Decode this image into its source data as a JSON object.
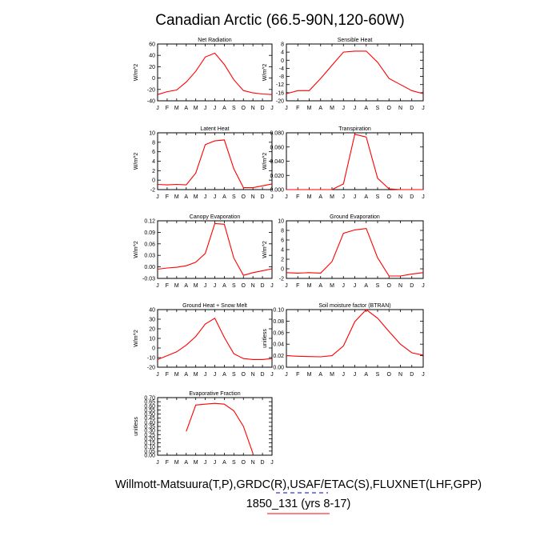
{
  "title": "Canadian Arctic (66.5-90N,120-60W)",
  "footer": {
    "line1": "Willmott-Matsuura(T,P),GRDC(R),USAF/ETAC(S),FLUXNET(LHF,GPP)",
    "line2": "1850_131 (yrs 8-17)"
  },
  "colors": {
    "series": "#ff0000",
    "legend_dash_1": "#0000cc",
    "legend_line_2": "#ff0000"
  },
  "chart_data": [
    {
      "type": "line",
      "title": "Net Radiation",
      "xlabel": "",
      "ylabel": "W/m^2",
      "categories": [
        "J",
        "F",
        "M",
        "A",
        "M",
        "J",
        "J",
        "A",
        "S",
        "O",
        "N",
        "D",
        "J"
      ],
      "ylim": [
        -40,
        60
      ],
      "yticks": [
        -40,
        -20,
        0,
        20,
        40,
        60
      ],
      "ytick_labels": [
        "-40",
        "-20",
        "0",
        "20",
        "40",
        "60"
      ],
      "series": [
        {
          "values": [
            -29,
            -24,
            -21,
            -7,
            12,
            37,
            44,
            24,
            -3,
            -22,
            -26,
            -28,
            -29
          ]
        }
      ]
    },
    {
      "type": "line",
      "title": "Sensible Heat",
      "xlabel": "",
      "ylabel": "W/m^2",
      "categories": [
        "J",
        "F",
        "M",
        "A",
        "M",
        "J",
        "J",
        "A",
        "S",
        "O",
        "N",
        "D",
        "J"
      ],
      "ylim": [
        -20,
        8
      ],
      "yticks": [
        -20,
        -16,
        -12,
        -8,
        -4,
        0,
        4,
        8
      ],
      "ytick_labels": [
        "-20",
        "-16",
        "-12",
        "-8",
        "-4",
        "0",
        "4",
        "8"
      ],
      "series": [
        {
          "values": [
            -16.5,
            -15,
            -15,
            -9,
            -2.5,
            4,
            4.5,
            4.5,
            -1,
            -9,
            -12,
            -15,
            -16.5
          ]
        }
      ]
    },
    {
      "type": "line",
      "title": "Latent Heat",
      "xlabel": "",
      "ylabel": "W/m^2",
      "categories": [
        "J",
        "F",
        "M",
        "A",
        "M",
        "J",
        "J",
        "A",
        "S",
        "O",
        "N",
        "D",
        "J"
      ],
      "ylim": [
        -2,
        10
      ],
      "yticks": [
        -2,
        0,
        2,
        4,
        6,
        8,
        10
      ],
      "ytick_labels": [
        "-2",
        "0",
        "2",
        "4",
        "6",
        "8",
        "10"
      ],
      "series": [
        {
          "values": [
            -0.9,
            -1,
            -0.9,
            -1,
            1.5,
            7.5,
            8.3,
            8.5,
            2.4,
            -1.6,
            -1.6,
            -1.2,
            -0.8
          ]
        }
      ]
    },
    {
      "type": "line",
      "title": "Transpiration",
      "xlabel": "",
      "ylabel": "W/m^2",
      "categories": [
        "J",
        "F",
        "M",
        "A",
        "M",
        "J",
        "J",
        "A",
        "S",
        "O",
        "N",
        "D",
        "J"
      ],
      "ylim": [
        0,
        0.08
      ],
      "yticks": [
        0,
        0.02,
        0.04,
        0.06,
        0.08
      ],
      "ytick_labels": [
        "0.000",
        "0.020",
        "0.040",
        "0.060",
        "0.080"
      ],
      "series": [
        {
          "values": [
            0,
            0,
            0,
            0,
            0,
            0.008,
            0.078,
            0.074,
            0.016,
            0.001,
            0,
            0,
            0
          ]
        }
      ]
    },
    {
      "type": "line",
      "title": "Canopy Evaporation",
      "xlabel": "",
      "ylabel": "W/m^2",
      "categories": [
        "J",
        "F",
        "M",
        "A",
        "M",
        "J",
        "J",
        "A",
        "S",
        "O",
        "N",
        "D",
        "J"
      ],
      "ylim": [
        -0.03,
        0.12
      ],
      "yticks": [
        -0.03,
        0,
        0.03,
        0.06,
        0.09,
        0.12
      ],
      "ytick_labels": [
        "-0.03",
        "0.00",
        "0.03",
        "0.06",
        "0.09",
        "0.12"
      ],
      "series": [
        {
          "values": [
            -0.006,
            -0.003,
            -0.001,
            0.003,
            0.012,
            0.035,
            0.113,
            0.111,
            0.023,
            -0.022,
            -0.015,
            -0.01,
            -0.005
          ]
        }
      ]
    },
    {
      "type": "line",
      "title": "Ground Evaporation",
      "xlabel": "",
      "ylabel": "W/m^2",
      "categories": [
        "J",
        "F",
        "M",
        "A",
        "M",
        "J",
        "J",
        "A",
        "S",
        "O",
        "N",
        "D",
        "J"
      ],
      "ylim": [
        -2,
        10
      ],
      "yticks": [
        -2,
        0,
        2,
        4,
        6,
        8,
        10
      ],
      "ytick_labels": [
        "-2",
        "0",
        "2",
        "4",
        "6",
        "8",
        "10"
      ],
      "series": [
        {
          "values": [
            -0.8,
            -0.9,
            -0.8,
            -0.9,
            1.5,
            7.4,
            8.1,
            8.4,
            2.3,
            -1.5,
            -1.5,
            -1.1,
            -0.8
          ]
        }
      ]
    },
    {
      "type": "line",
      "title": "Ground Heat + Snow Melt",
      "xlabel": "",
      "ylabel": "W/m^2",
      "categories": [
        "J",
        "F",
        "M",
        "A",
        "M",
        "J",
        "J",
        "A",
        "S",
        "O",
        "N",
        "D",
        "J"
      ],
      "ylim": [
        -20,
        40
      ],
      "yticks": [
        -20,
        -10,
        0,
        10,
        20,
        30,
        40
      ],
      "ytick_labels": [
        "-20",
        "-10",
        "0",
        "10",
        "20",
        "30",
        "40"
      ],
      "series": [
        {
          "values": [
            -12,
            -8,
            -4,
            3,
            12,
            25,
            31,
            11,
            -6,
            -11,
            -12,
            -12,
            -11
          ]
        }
      ]
    },
    {
      "type": "line",
      "title": "Soil moisture factor (BTRAN)",
      "xlabel": "",
      "ylabel": "unitless",
      "categories": [
        "J",
        "F",
        "M",
        "A",
        "M",
        "J",
        "J",
        "A",
        "S",
        "O",
        "N",
        "D",
        "J"
      ],
      "ylim": [
        0,
        0.1
      ],
      "yticks": [
        0,
        0.02,
        0.04,
        0.06,
        0.08,
        0.1
      ],
      "ytick_labels": [
        "0.00",
        "0.02",
        "0.04",
        "0.06",
        "0.08",
        "0.10"
      ],
      "series": [
        {
          "values": [
            0.02,
            0.019,
            0.0185,
            0.018,
            0.02,
            0.037,
            0.079,
            0.1,
            0.085,
            0.062,
            0.04,
            0.025,
            0.021
          ]
        }
      ]
    },
    {
      "type": "line",
      "title": "Evaporative Fraction",
      "xlabel": "",
      "ylabel": "unitless",
      "categories": [
        "J",
        "F",
        "M",
        "A",
        "M",
        "J",
        "J",
        "A",
        "S",
        "O",
        "N",
        "D",
        "J"
      ],
      "ylim": [
        0,
        0.7
      ],
      "yticks": [
        0,
        0.05,
        0.1,
        0.15,
        0.2,
        0.25,
        0.3,
        0.35,
        0.4,
        0.45,
        0.5,
        0.55,
        0.6,
        0.65,
        0.7
      ],
      "ytick_labels": [
        "0.00",
        "0.05",
        "0.10",
        "0.15",
        "0.20",
        "0.25",
        "0.30",
        "0.35",
        "0.40",
        "0.45",
        "0.50",
        "0.55",
        "0.60",
        "0.65",
        "0.70"
      ],
      "series": [
        {
          "values": [
            null,
            null,
            null,
            0.29,
            0.61,
            0.62,
            0.63,
            0.62,
            0.54,
            0.35,
            0.02,
            null,
            null
          ]
        }
      ]
    }
  ]
}
